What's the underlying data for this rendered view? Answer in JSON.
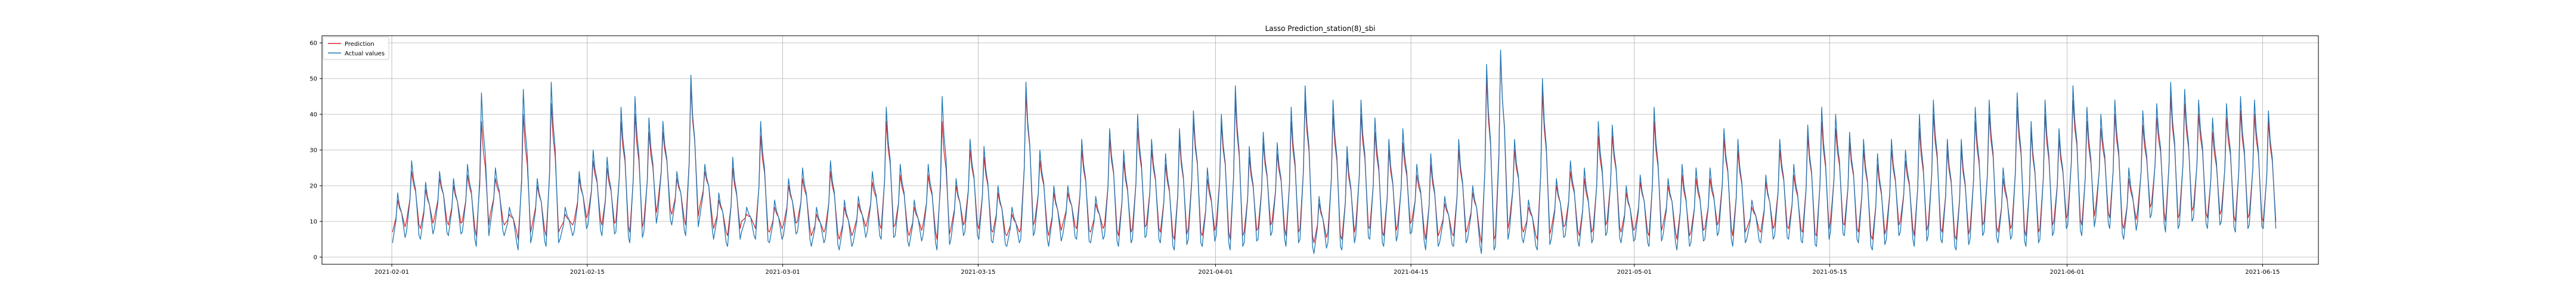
{
  "chart_data": {
    "type": "line",
    "title": "Lasso Prediction_station(8)_sbi",
    "xlabel": "",
    "ylabel": "",
    "x_range": [
      "2021-01-27",
      "2021-06-19"
    ],
    "ylim": [
      -2,
      62
    ],
    "grid": true,
    "legend": "upper-left",
    "x_ticks": [
      "2021-02-01",
      "2021-02-15",
      "2021-03-01",
      "2021-03-15",
      "2021-04-01",
      "2021-04-15",
      "2021-05-01",
      "2021-05-15",
      "2021-06-01",
      "2021-06-15"
    ],
    "y_ticks": [
      0,
      10,
      20,
      30,
      40,
      50,
      60
    ],
    "data_start": "2021-02-01",
    "data_end": "2021-06-10",
    "series": [
      {
        "name": "Prediction",
        "color": "#d62728",
        "daily_peaks": [
          16,
          24,
          19,
          22,
          20,
          23,
          38,
          22,
          12,
          40,
          20,
          43,
          12,
          22,
          27,
          25,
          38,
          40,
          35,
          35,
          22,
          48,
          24,
          16,
          25,
          12,
          34,
          14,
          20,
          22,
          12,
          24,
          14,
          15,
          21,
          38,
          23,
          14,
          23,
          38,
          20,
          30,
          28,
          18,
          12,
          46,
          27,
          18,
          18,
          30,
          15,
          33,
          27,
          36,
          30,
          26,
          33,
          38,
          22,
          37,
          44,
          28,
          32,
          29,
          38,
          44,
          15,
          40,
          28,
          40,
          35,
          30,
          32,
          23,
          26,
          15,
          30,
          18,
          50,
          57,
          30,
          14,
          46,
          20,
          24,
          22,
          34,
          34,
          18,
          21,
          38,
          20,
          23,
          22,
          22,
          33,
          30,
          14,
          21,
          30,
          23,
          34,
          38,
          36,
          32,
          30,
          26,
          30,
          27,
          36,
          40,
          30,
          30,
          38,
          40,
          22,
          42,
          35,
          40,
          33,
          44,
          38,
          36,
          40,
          22,
          37,
          39,
          45,
          43,
          40,
          35,
          39,
          41,
          40,
          38
        ],
        "daily_troughs": [
          7,
          10,
          8,
          11,
          9,
          10,
          6,
          12,
          9,
          5,
          9,
          6,
          8,
          10,
          12,
          9,
          10,
          7,
          10,
          15,
          12,
          9,
          14,
          8,
          6,
          10,
          8,
          7,
          9,
          10,
          6,
          8,
          5,
          7,
          10,
          8,
          9,
          6,
          9,
          5,
          8,
          10,
          8,
          7,
          6,
          8,
          10,
          6,
          9,
          8,
          7,
          9,
          6,
          8,
          9,
          7,
          5,
          8,
          6,
          9,
          5,
          7,
          8,
          10,
          6,
          8,
          4,
          7,
          5,
          9,
          8,
          6,
          9,
          10,
          5,
          7,
          6,
          8,
          4,
          6,
          10,
          7,
          5,
          8,
          9,
          6,
          8,
          10,
          7,
          8,
          6,
          9,
          5,
          7,
          8,
          10,
          6,
          8,
          7,
          9,
          8,
          7,
          6,
          10,
          9,
          7,
          5,
          8,
          10,
          6,
          9,
          7,
          5,
          8,
          10,
          7,
          9,
          6,
          8,
          10,
          12,
          9,
          14,
          11,
          8,
          13,
          15,
          10,
          12,
          14,
          11,
          13,
          10,
          12,
          10
        ]
      },
      {
        "name": "Actual values",
        "color": "#1f77b4",
        "daily_peaks": [
          18,
          27,
          21,
          24,
          22,
          26,
          46,
          25,
          14,
          47,
          22,
          49,
          14,
          24,
          30,
          28,
          42,
          45,
          39,
          38,
          24,
          51,
          26,
          18,
          28,
          14,
          38,
          16,
          22,
          25,
          14,
          27,
          16,
          17,
          24,
          42,
          26,
          16,
          26,
          45,
          22,
          33,
          31,
          20,
          14,
          49,
          30,
          20,
          20,
          33,
          17,
          36,
          30,
          40,
          33,
          29,
          36,
          41,
          25,
          40,
          48,
          31,
          35,
          32,
          42,
          48,
          17,
          44,
          31,
          44,
          39,
          33,
          36,
          26,
          29,
          17,
          33,
          20,
          54,
          58,
          33,
          16,
          50,
          22,
          27,
          25,
          38,
          37,
          20,
          23,
          42,
          22,
          26,
          25,
          25,
          36,
          33,
          16,
          23,
          33,
          26,
          37,
          42,
          40,
          35,
          33,
          29,
          33,
          30,
          40,
          44,
          33,
          33,
          42,
          44,
          25,
          46,
          38,
          44,
          36,
          48,
          42,
          40,
          44,
          25,
          41,
          43,
          49,
          47,
          44,
          39,
          43,
          45,
          44,
          41
        ],
        "daily_troughs": [
          4,
          7,
          5,
          8,
          6,
          7,
          3,
          9,
          6,
          2,
          6,
          3,
          5,
          7,
          9,
          6,
          7,
          4,
          7,
          12,
          9,
          6,
          11,
          5,
          3,
          7,
          5,
          4,
          6,
          7,
          3,
          5,
          2,
          4,
          7,
          5,
          6,
          3,
          6,
          2,
          5,
          7,
          5,
          4,
          3,
          5,
          7,
          3,
          6,
          5,
          4,
          6,
          3,
          5,
          6,
          4,
          2,
          5,
          3,
          6,
          2,
          4,
          5,
          7,
          3,
          5,
          1,
          4,
          2,
          6,
          5,
          3,
          6,
          7,
          2,
          4,
          3,
          5,
          1,
          3,
          7,
          4,
          2,
          5,
          6,
          3,
          5,
          7,
          4,
          5,
          3,
          6,
          2,
          4,
          5,
          7,
          3,
          5,
          4,
          6,
          5,
          4,
          3,
          7,
          6,
          4,
          2,
          5,
          7,
          3,
          6,
          4,
          2,
          5,
          7,
          4,
          6,
          3,
          5,
          7,
          9,
          6,
          11,
          8,
          5,
          10,
          12,
          7,
          9,
          11,
          8,
          10,
          7,
          9,
          8
        ]
      }
    ]
  }
}
